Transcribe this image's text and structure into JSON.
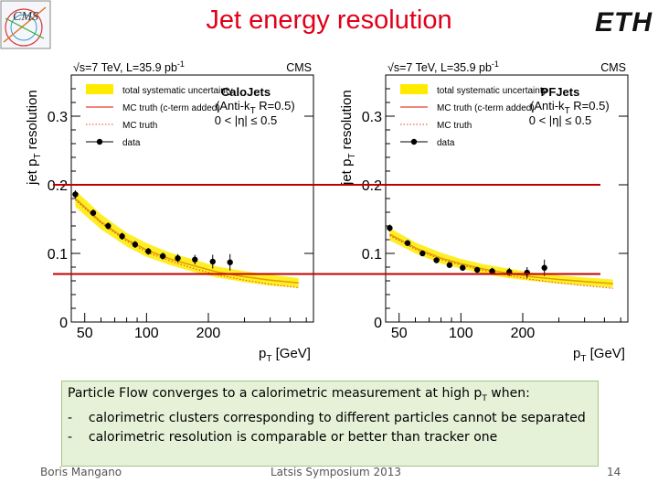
{
  "slide": {
    "title": "Jet energy resolution",
    "logo_left": "CMS",
    "logo_right": "ETH",
    "note": {
      "intro": "Particle Flow converges to a calorimetric measurement at  high p",
      "intro_sub": "T",
      "intro_end": " when:",
      "bullets": [
        "calorimetric clusters corresponding to different particles cannot be separated",
        "calorimetric resolution is comparable or better than tracker one"
      ],
      "bullet_marker": "-"
    },
    "footer": {
      "author": "Boris Mangano",
      "event": "Latsis Symposium 2013",
      "page": "14"
    },
    "colors": {
      "title": "#e0001a",
      "band": "#ffeb00",
      "fit": "#e0a000",
      "mc": "#e8402a",
      "ref_line": "#c00000",
      "note_bg": "#e6f2d8"
    }
  },
  "chart_data": [
    {
      "type": "line",
      "header": "√s=7 TeV, L=35.9 pb",
      "header_sup": "-1",
      "experiment": "CMS",
      "jet_type": "CaloJets",
      "algo": "(Anti-k",
      "algo_sub": "T",
      "algo_end": " R=0.5)",
      "eta": "0 < |η| ≤ 0.5",
      "xlabel": "p",
      "xlabel_sub": "T",
      "xlabel_end": " [GeV]",
      "ylabel": "jet p",
      "ylabel_sub": "T",
      "ylabel_end": " resolution",
      "xscale": "log",
      "xlim": [
        43,
        650
      ],
      "ylim": [
        0,
        0.36
      ],
      "xticks": [
        50,
        100,
        200
      ],
      "yticks": [
        0,
        0.1,
        0.2,
        0.3
      ],
      "legend": [
        "total systematic uncertainty",
        "MC truth (c-term added)",
        "MC truth",
        "data"
      ],
      "legend_position": "top-left",
      "reference_lines": [
        0.2,
        0.07
      ],
      "data": {
        "x": [
          45,
          55,
          65,
          76,
          88,
          102,
          120,
          142,
          172,
          210,
          255
        ],
        "y": [
          0.186,
          0.159,
          0.14,
          0.125,
          0.113,
          0.103,
          0.096,
          0.093,
          0.091,
          0.088,
          0.087
        ],
        "err": [
          0.006,
          0.005,
          0.005,
          0.005,
          0.005,
          0.005,
          0.005,
          0.006,
          0.007,
          0.01,
          0.012
        ]
      },
      "mc_truth_c": {
        "x": [
          45,
          60,
          80,
          100,
          130,
          170,
          220,
          300,
          400,
          550
        ],
        "y": [
          0.18,
          0.146,
          0.12,
          0.105,
          0.092,
          0.082,
          0.073,
          0.066,
          0.061,
          0.057
        ]
      },
      "mc_truth": {
        "x": [
          45,
          60,
          80,
          100,
          130,
          170,
          220,
          300,
          400,
          550
        ],
        "y": [
          0.178,
          0.144,
          0.118,
          0.102,
          0.089,
          0.078,
          0.069,
          0.061,
          0.055,
          0.05
        ]
      },
      "band_halfwidth": [
        0.012,
        0.011,
        0.01,
        0.01,
        0.009,
        0.009,
        0.008,
        0.008,
        0.008,
        0.007
      ]
    },
    {
      "type": "line",
      "header": "√s=7 TeV, L=35.9 pb",
      "header_sup": "-1",
      "experiment": "CMS",
      "jet_type": "PFJets",
      "algo": "(Anti-k",
      "algo_sub": "T",
      "algo_end": " R=0.5)",
      "eta": "0 < |η| ≤ 0.5",
      "xlabel": "p",
      "xlabel_sub": "T",
      "xlabel_end": " [GeV]",
      "ylabel": "jet p",
      "ylabel_sub": "T",
      "ylabel_end": " resolution",
      "xscale": "log",
      "xlim": [
        43,
        650
      ],
      "ylim": [
        0,
        0.36
      ],
      "xticks": [
        50,
        100,
        200
      ],
      "yticks": [
        0,
        0.1,
        0.2,
        0.3
      ],
      "legend": [
        "total systematic uncertainty",
        "MC truth (c-term added)",
        "MC truth",
        "data"
      ],
      "legend_position": "top-left",
      "reference_lines": [
        0.2,
        0.07
      ],
      "data": {
        "x": [
          45,
          55,
          65,
          76,
          88,
          102,
          120,
          142,
          172,
          210,
          255
        ],
        "y": [
          0.137,
          0.115,
          0.1,
          0.09,
          0.083,
          0.079,
          0.076,
          0.074,
          0.073,
          0.072,
          0.079
        ],
        "err": [
          0.005,
          0.004,
          0.004,
          0.004,
          0.004,
          0.004,
          0.004,
          0.005,
          0.006,
          0.008,
          0.012
        ]
      },
      "mc_truth_c": {
        "x": [
          45,
          60,
          80,
          100,
          130,
          170,
          220,
          300,
          400,
          550
        ],
        "y": [
          0.128,
          0.108,
          0.093,
          0.085,
          0.077,
          0.071,
          0.066,
          0.062,
          0.059,
          0.056
        ]
      },
      "mc_truth": {
        "x": [
          45,
          60,
          80,
          100,
          130,
          170,
          220,
          300,
          400,
          550
        ],
        "y": [
          0.126,
          0.106,
          0.091,
          0.083,
          0.075,
          0.068,
          0.062,
          0.057,
          0.053,
          0.049
        ]
      },
      "band_halfwidth": [
        0.009,
        0.008,
        0.008,
        0.007,
        0.007,
        0.007,
        0.006,
        0.006,
        0.006,
        0.006
      ]
    }
  ]
}
